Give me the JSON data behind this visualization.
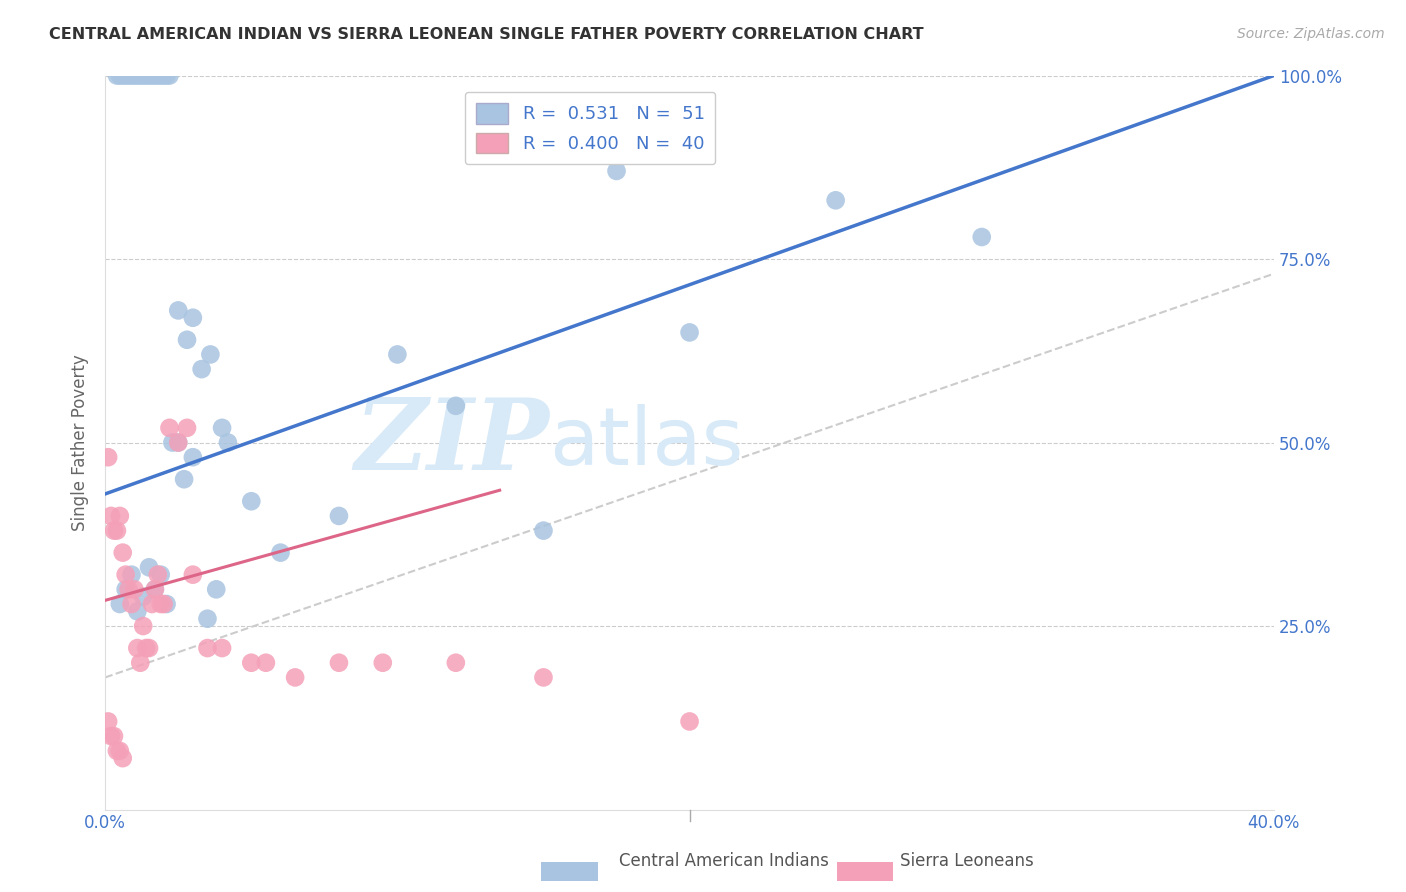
{
  "title": "CENTRAL AMERICAN INDIAN VS SIERRA LEONEAN SINGLE FATHER POVERTY CORRELATION CHART",
  "source": "Source: ZipAtlas.com",
  "ylabel": "Single Father Poverty",
  "xlim": [
    0.0,
    0.4
  ],
  "ylim": [
    0.0,
    1.0
  ],
  "legend_label1": "Central American Indians",
  "legend_label2": "Sierra Leoneans",
  "color_blue": "#a8c4e0",
  "color_pink": "#f4a0b8",
  "color_line_blue": "#4477cc",
  "color_line_pink": "#dd6688",
  "color_axis": "#4477cc",
  "watermark_color": "#d8eaf8",
  "blue_line_x": [
    0.0,
    0.4
  ],
  "blue_line_y": [
    0.43,
    1.0
  ],
  "pink_line_x": [
    0.0,
    0.135
  ],
  "pink_line_y": [
    0.285,
    0.435
  ],
  "diag_line_x": [
    0.0,
    0.4
  ],
  "diag_line_y": [
    0.18,
    0.73
  ],
  "blue_x": [
    0.004,
    0.005,
    0.006,
    0.007,
    0.008,
    0.009,
    0.01,
    0.011,
    0.012,
    0.013,
    0.014,
    0.015,
    0.016,
    0.017,
    0.018,
    0.019,
    0.02,
    0.021,
    0.022,
    0.025,
    0.028,
    0.03,
    0.033,
    0.036,
    0.04,
    0.042,
    0.05,
    0.06,
    0.08,
    0.1,
    0.12,
    0.15,
    0.175,
    0.2,
    0.25,
    0.3,
    0.005,
    0.007,
    0.009,
    0.011,
    0.013,
    0.015,
    0.017,
    0.019,
    0.021,
    0.023,
    0.025,
    0.027,
    0.03,
    0.035,
    0.038
  ],
  "blue_y": [
    1.0,
    1.0,
    1.0,
    1.0,
    1.0,
    1.0,
    1.0,
    1.0,
    1.0,
    1.0,
    1.0,
    1.0,
    1.0,
    1.0,
    1.0,
    1.0,
    1.0,
    1.0,
    1.0,
    0.68,
    0.64,
    0.67,
    0.6,
    0.62,
    0.52,
    0.5,
    0.42,
    0.35,
    0.4,
    0.62,
    0.55,
    0.38,
    0.87,
    0.65,
    0.83,
    0.78,
    0.28,
    0.3,
    0.32,
    0.27,
    0.29,
    0.33,
    0.3,
    0.32,
    0.28,
    0.5,
    0.5,
    0.45,
    0.48,
    0.26,
    0.3
  ],
  "pink_x": [
    0.001,
    0.002,
    0.003,
    0.004,
    0.005,
    0.006,
    0.007,
    0.008,
    0.009,
    0.01,
    0.011,
    0.012,
    0.013,
    0.014,
    0.015,
    0.016,
    0.017,
    0.018,
    0.019,
    0.02,
    0.022,
    0.025,
    0.028,
    0.03,
    0.035,
    0.04,
    0.05,
    0.055,
    0.065,
    0.08,
    0.095,
    0.12,
    0.15,
    0.2,
    0.001,
    0.002,
    0.003,
    0.004,
    0.005,
    0.006
  ],
  "pink_y": [
    0.48,
    0.4,
    0.38,
    0.38,
    0.4,
    0.35,
    0.32,
    0.3,
    0.28,
    0.3,
    0.22,
    0.2,
    0.25,
    0.22,
    0.22,
    0.28,
    0.3,
    0.32,
    0.28,
    0.28,
    0.52,
    0.5,
    0.52,
    0.32,
    0.22,
    0.22,
    0.2,
    0.2,
    0.18,
    0.2,
    0.2,
    0.2,
    0.18,
    0.12,
    0.12,
    0.1,
    0.1,
    0.08,
    0.08,
    0.07
  ]
}
